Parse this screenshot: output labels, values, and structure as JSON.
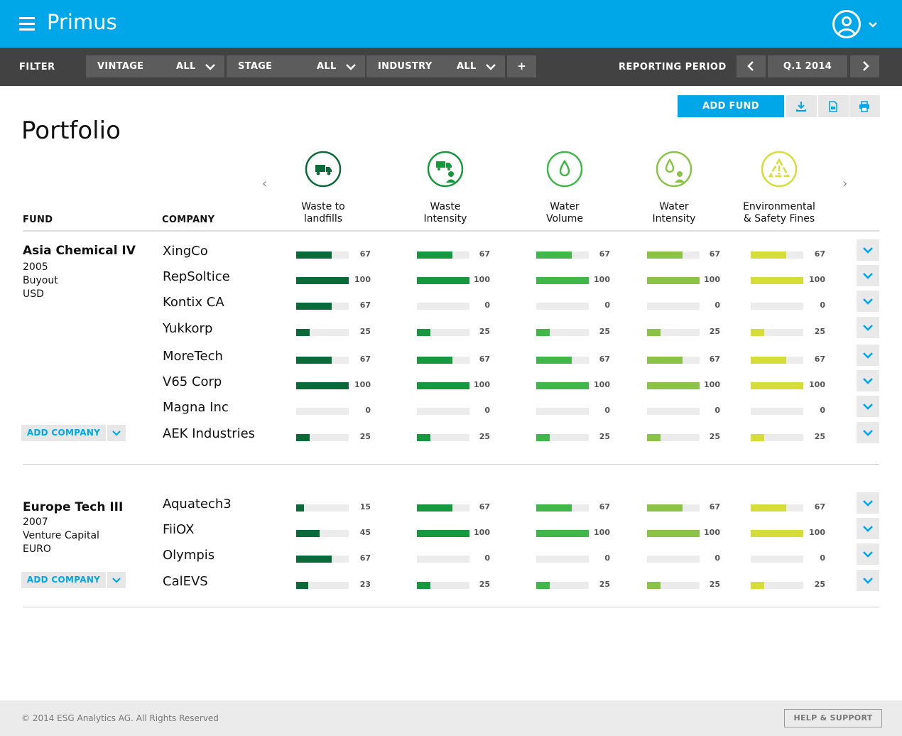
{
  "app": {
    "title": "Primus"
  },
  "filter": {
    "label": "FILTER",
    "selects": [
      {
        "name": "VINTAGE",
        "value": "ALL"
      },
      {
        "name": "STAGE",
        "value": "ALL"
      },
      {
        "name": "INDUSTRY",
        "value": "ALL"
      }
    ],
    "add_label": "+",
    "period_label": "REPORTING PERIOD",
    "period_value": "Q.1  2014"
  },
  "toolbar": {
    "add_fund": "ADD FUND"
  },
  "page": {
    "title": "Portfolio"
  },
  "columns": {
    "fund": "FUND",
    "company": "COMPANY"
  },
  "metrics": [
    {
      "label_l1": "Waste to",
      "label_l2": "landfills",
      "color": "#0a6a3a",
      "icon": "waste-truck-icon"
    },
    {
      "label_l1": "Waste",
      "label_l2": "Intensity",
      "color": "#16983f",
      "icon": "waste-intensity-icon"
    },
    {
      "label_l1": "Water",
      "label_l2": "Volume",
      "color": "#41b649",
      "icon": "water-drop-icon"
    },
    {
      "label_l1": "Water",
      "label_l2": "Intensity",
      "color": "#8ac345",
      "icon": "water-intensity-icon"
    },
    {
      "label_l1": "Environmental",
      "label_l2": "& Safety Fines",
      "color": "#d5dd36",
      "icon": "recycle-warning-icon"
    }
  ],
  "funds": [
    {
      "name": "Asia Chemical IV",
      "year": "2005",
      "stage": "Buyout",
      "currency": "USD",
      "add_company": "ADD COMPANY",
      "companies": [
        {
          "name": "XingCo",
          "values": [
            67,
            67,
            67,
            67,
            67
          ]
        },
        {
          "name": "RepSoltice",
          "values": [
            100,
            100,
            100,
            100,
            100
          ]
        },
        {
          "name": "Kontix CA",
          "values": [
            67,
            0,
            0,
            0,
            0
          ]
        },
        {
          "name": "Yukkorp",
          "values": [
            25,
            25,
            25,
            25,
            25
          ]
        },
        {
          "name": "MoreTech",
          "values": [
            67,
            67,
            67,
            67,
            67
          ]
        },
        {
          "name": "V65 Corp",
          "values": [
            100,
            100,
            100,
            100,
            100
          ]
        },
        {
          "name": "Magna Inc",
          "values": [
            0,
            0,
            0,
            0,
            0
          ]
        },
        {
          "name": "AEK Industries",
          "values": [
            25,
            25,
            25,
            25,
            25
          ]
        }
      ]
    },
    {
      "name": "Europe Tech III",
      "year": "2007",
      "stage": "Venture Capital",
      "currency": "EURO",
      "add_company": "ADD COMPANY",
      "companies": [
        {
          "name": "Aquatech3",
          "values": [
            15,
            67,
            67,
            67,
            67
          ]
        },
        {
          "name": "FiiOX",
          "values": [
            45,
            100,
            100,
            100,
            100
          ]
        },
        {
          "name": "Olympis",
          "values": [
            67,
            0,
            0,
            0,
            0
          ]
        },
        {
          "name": "CalEVS",
          "values": [
            23,
            25,
            25,
            25,
            25
          ]
        }
      ]
    }
  ],
  "footer": {
    "copyright": "© 2014 ESG Analytics AG. All Rights Reserved",
    "help": "HELP & SUPPORT"
  }
}
